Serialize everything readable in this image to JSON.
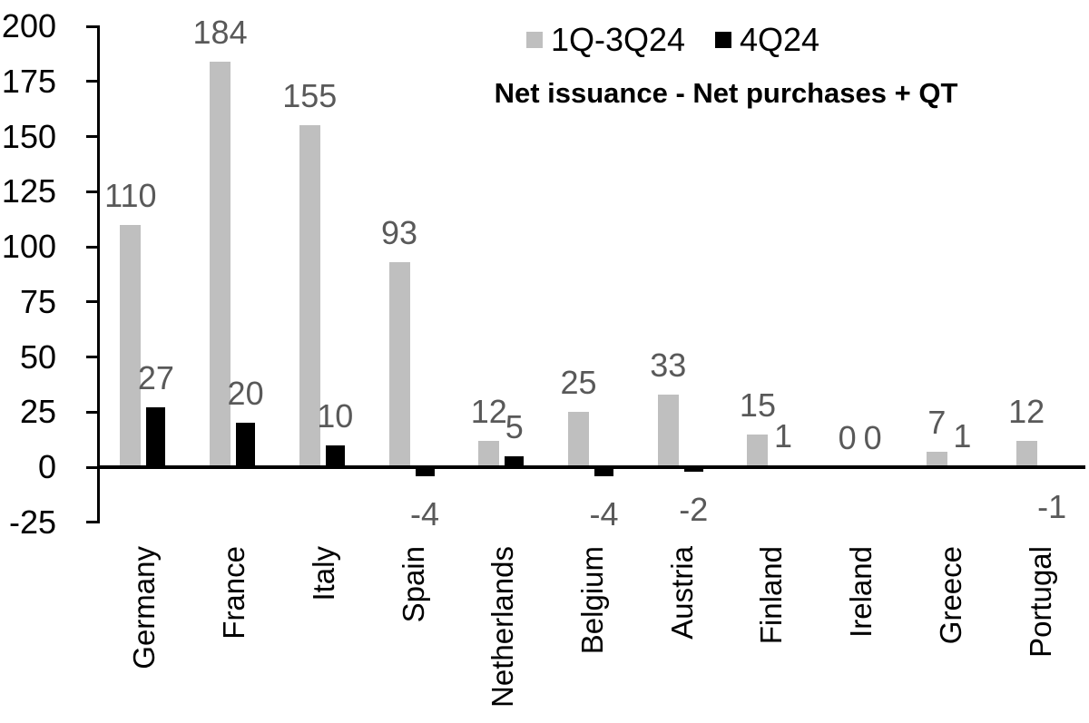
{
  "chart_data": {
    "type": "bar",
    "title": "Net issuance - Net purchases + QT",
    "categories": [
      "Germany",
      "France",
      "Italy",
      "Spain",
      "Netherlands",
      "Belgium",
      "Austria",
      "Finland",
      "Ireland",
      "Greece",
      "Portugal"
    ],
    "series": [
      {
        "name": "1Q-3Q24",
        "color": "#bfbfbf",
        "values": [
          110,
          184,
          155,
          93,
          12,
          25,
          33,
          15,
          0,
          7,
          12
        ]
      },
      {
        "name": "4Q24",
        "color": "#000000",
        "values": [
          27,
          20,
          10,
          -4,
          5,
          -4,
          -2,
          1,
          0,
          1,
          -1
        ]
      }
    ],
    "y_axis": {
      "min": -25,
      "max": 200,
      "step": 25,
      "ticks": [
        200,
        175,
        150,
        125,
        100,
        75,
        50,
        25,
        0,
        -25
      ]
    },
    "grid": false,
    "legend_position": "top-right",
    "colors": {
      "axis": "#000000",
      "data_label": "#595959",
      "tick_label": "#000000",
      "background": "#ffffff"
    }
  }
}
